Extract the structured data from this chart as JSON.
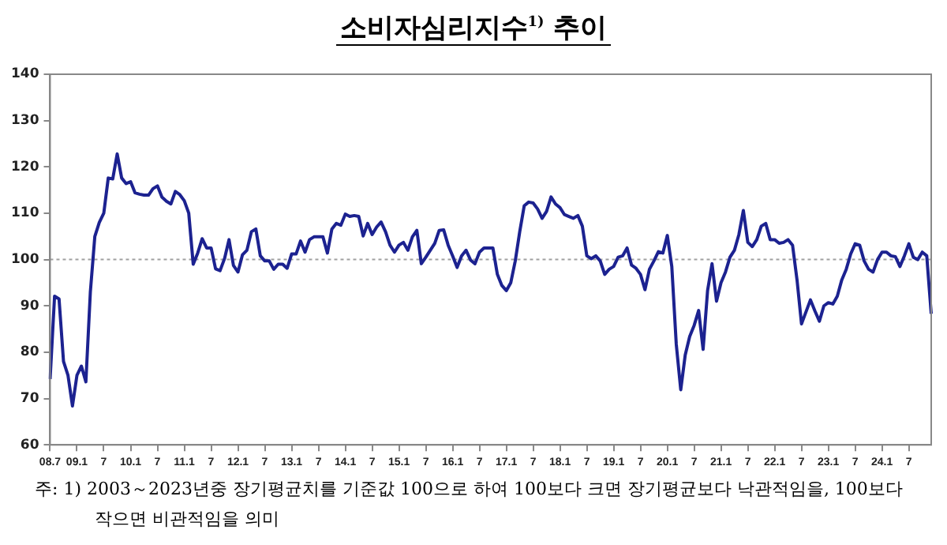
{
  "chart_data": {
    "type": "line",
    "title": "소비자심리지수$^{1)}$ 추이",
    "categories": [
      "08.7",
      null,
      null,
      null,
      null,
      null,
      "09.1",
      null,
      null,
      null,
      null,
      null,
      "7",
      null,
      null,
      null,
      null,
      null,
      "10.1",
      null,
      null,
      null,
      null,
      null,
      "7",
      null,
      null,
      null,
      null,
      null,
      "11.1",
      null,
      null,
      null,
      null,
      null,
      "7",
      null,
      null,
      null,
      null,
      null,
      "12.1",
      null,
      null,
      null,
      null,
      null,
      "7",
      null,
      null,
      null,
      null,
      null,
      "13.1",
      null,
      null,
      null,
      null,
      null,
      "7",
      null,
      null,
      null,
      null,
      null,
      "14.1",
      null,
      null,
      null,
      null,
      null,
      "7",
      null,
      null,
      null,
      null,
      null,
      "15.1",
      null,
      null,
      null,
      null,
      null,
      "7",
      null,
      null,
      null,
      null,
      null,
      "16.1",
      null,
      null,
      null,
      null,
      null,
      "7",
      null,
      null,
      null,
      null,
      null,
      "17.1",
      null,
      null,
      null,
      null,
      null,
      "7",
      null,
      null,
      null,
      null,
      null,
      "18.1",
      null,
      null,
      null,
      null,
      null,
      "7",
      null,
      null,
      null,
      null,
      null,
      "19.1",
      null,
      null,
      null,
      null,
      null,
      "7",
      null,
      null,
      null,
      null,
      null,
      "20.1",
      null,
      null,
      null,
      null,
      null,
      "7",
      null,
      null,
      null,
      null,
      null,
      "21.1",
      null,
      null,
      null,
      null,
      null,
      "7",
      null,
      null,
      null,
      null,
      null,
      "22.1",
      null,
      null,
      null,
      null,
      null,
      "7",
      null,
      null,
      null,
      null,
      null,
      "23.1",
      null,
      null,
      null,
      null,
      null,
      "7",
      null,
      null,
      null,
      null,
      null,
      "24.1",
      null,
      null,
      null,
      null,
      null,
      "7",
      null,
      null,
      null,
      null,
      null
    ],
    "values": [
      74.2,
      92.1,
      91.5,
      78,
      75,
      68.4,
      75,
      77,
      73.6,
      93,
      105,
      108,
      110,
      117.6,
      117.4,
      122.8,
      117.6,
      116.4,
      116.8,
      114.4,
      114.1,
      113.9,
      113.9,
      115.3,
      115.9,
      113.5,
      112.6,
      112,
      114.7,
      114,
      112.7,
      110,
      99,
      101.4,
      104.5,
      102.5,
      102.5,
      98,
      97.6,
      100.2,
      104.3,
      98.7,
      97.3,
      101,
      102,
      106,
      106.6,
      100.8,
      99.7,
      99.7,
      97.9,
      99,
      99,
      98.1,
      101.2,
      101.2,
      104,
      101.6,
      104.3,
      104.9,
      104.9,
      104.9,
      101.4,
      106.6,
      107.8,
      107.4,
      109.8,
      109.3,
      109.5,
      109.3,
      105.1,
      107.8,
      105.4,
      107,
      108.1,
      106,
      103.1,
      101.6,
      103.1,
      103.7,
      102,
      104.9,
      106.3,
      99.1,
      100.5,
      102,
      103.5,
      106.3,
      106.4,
      103.1,
      100.8,
      98.3,
      100.8,
      102,
      99.9,
      99.1,
      101.6,
      102.5,
      102.5,
      102.5,
      96.8,
      94.4,
      93.3,
      95,
      99.7,
      106,
      111.6,
      112.4,
      112.2,
      110.9,
      108.9,
      110.4,
      113.5,
      112,
      111.2,
      109.7,
      109.3,
      108.9,
      109.5,
      107.2,
      100.8,
      100.2,
      100.8,
      99.7,
      96.8,
      97.9,
      98.5,
      100.5,
      100.8,
      102.5,
      98.8,
      98.1,
      96.8,
      93.5,
      97.9,
      99.7,
      101.7,
      101.4,
      105.2,
      98.5,
      81.7,
      71.9,
      79.4,
      83.4,
      85.8,
      89,
      80.6,
      93.3,
      99.1,
      91,
      95,
      97.3,
      100.5,
      102,
      105.4,
      110.6,
      103.7,
      102.8,
      104.3,
      107.2,
      107.8,
      104.3,
      104.3,
      103.5,
      103.7,
      104.3,
      103.1,
      95.6,
      86.1,
      88.7,
      91.3,
      88.9,
      86.7,
      90,
      90.7,
      90.4,
      92.1,
      95.6,
      97.9,
      101.2,
      103.4,
      103.1,
      99.7,
      97.9,
      97.3,
      100,
      101.6,
      101.6,
      100.8,
      100.6,
      98.5,
      100.8,
      103.4,
      100.5,
      100,
      101.6,
      100.8,
      88.3
    ],
    "color": "#1c2290",
    "marker": "none",
    "line_style": "solid",
    "grid": false,
    "ylim": [
      60,
      140
    ],
    "yticks": [
      60,
      70,
      80,
      90,
      100,
      110,
      120,
      130,
      140
    ],
    "ref_lines": [
      {
        "axis": "y",
        "value": 100,
        "color": "#a0a0a0",
        "line_style": "dotted"
      }
    ],
    "annotations": [
      "주: 1) 2003～2023년중 장기평균치를 기준값 100으로 하여 100보다 크면 장기평균보다 낙관적임을, 100보다 작으면 비관적임을 의미"
    ]
  }
}
